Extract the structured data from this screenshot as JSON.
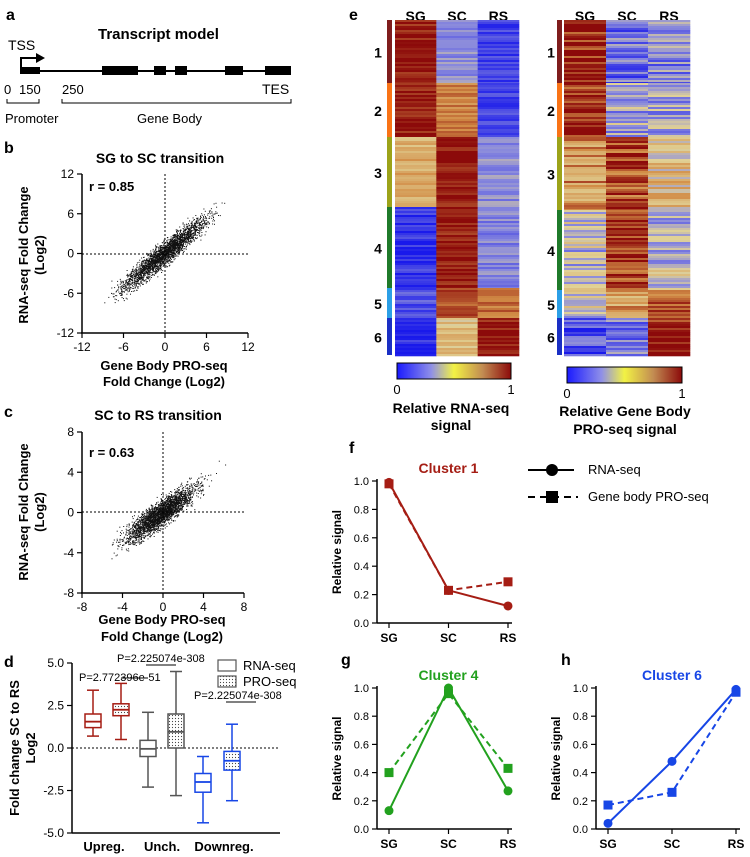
{
  "panel_letters": {
    "a": "a",
    "b": "b",
    "c": "c",
    "d": "d",
    "e": "e",
    "f": "f",
    "g": "g",
    "h": "h"
  },
  "transcript_model": {
    "title": "Transcript model",
    "tss": "TSS",
    "tes": "TES",
    "ticks": [
      "0",
      "150",
      "250"
    ],
    "promoter": "Promoter",
    "gene_body": "Gene Body"
  },
  "colors": {
    "red": "#a51d14",
    "green": "#22a11e",
    "blue": "#1746e6",
    "cluster1": "#7f1d1d",
    "cluster2": "#f97316",
    "cluster3": "#9ca319",
    "cluster4": "#1f7a2a",
    "cluster5": "#2b9fe6",
    "cluster6": "#1a2fc4"
  },
  "heatmaps": {
    "rna": {
      "columns": [
        "SG",
        "SC",
        "RS"
      ],
      "legend_label_1": "Relative RNA-seq",
      "legend_label_2": "signal",
      "scale_min": "0",
      "scale_max": "1",
      "clusters": [
        {
          "label": "1",
          "values": [
            0.96,
            0.3,
            0.1
          ]
        },
        {
          "label": "2",
          "values": [
            0.96,
            0.75,
            0.12
          ]
        },
        {
          "label": "3",
          "values": [
            0.62,
            0.96,
            0.3
          ]
        },
        {
          "label": "4",
          "values": [
            0.08,
            0.96,
            0.28
          ]
        },
        {
          "label": "5",
          "values": [
            0.15,
            0.85,
            0.78
          ]
        },
        {
          "label": "6",
          "values": [
            0.05,
            0.55,
            0.96
          ]
        }
      ]
    },
    "pro": {
      "columns": [
        "SG",
        "SC",
        "RS"
      ],
      "legend_label_1": "Relative Gene Body",
      "legend_label_2": "PRO-seq signal",
      "scale_min": "0",
      "scale_max": "1",
      "clusters": [
        {
          "label": "1",
          "values": [
            0.95,
            0.22,
            0.28
          ]
        },
        {
          "label": "2",
          "values": [
            0.92,
            0.35,
            0.35
          ]
        },
        {
          "label": "3",
          "values": [
            0.7,
            0.85,
            0.55
          ]
        },
        {
          "label": "4",
          "values": [
            0.4,
            0.9,
            0.4
          ]
        },
        {
          "label": "5",
          "values": [
            0.4,
            0.7,
            0.8
          ]
        },
        {
          "label": "6",
          "values": [
            0.15,
            0.25,
            0.95
          ]
        }
      ]
    }
  },
  "chart_data": [
    {
      "id": "b",
      "type": "scatter",
      "title": "SG to SC transition",
      "ylabel": "RNA-seq Fold Change (Log2)",
      "ylabel_1": "RNA-seq Fold Change",
      "ylabel_2": "(Log2)",
      "xlabel_1": "Gene Body PRO-seq",
      "xlabel_2": "Fold Change (Log2)",
      "xlim": [
        -12,
        12
      ],
      "ylim": [
        -12,
        12
      ],
      "xticks": [
        "-12",
        "-6",
        "0",
        "6",
        "12"
      ],
      "yticks": [
        "12",
        "6",
        "0",
        "-6",
        "-12"
      ],
      "annotation": "r = 0.85",
      "r": 0.85,
      "slope": 0.85,
      "spread_x": 3.0,
      "noise": 1.8
    },
    {
      "id": "c",
      "type": "scatter",
      "title": "SC to RS transition",
      "ylabel_1": "RNA-seq Fold Change",
      "ylabel_2": "(Log2)",
      "xlabel_1": "Gene Body PRO-seq",
      "xlabel_2": "Fold Change (Log2)",
      "xlim": [
        -8,
        8
      ],
      "ylim": [
        -8,
        8
      ],
      "xticks": [
        "-8",
        "-4",
        "0",
        "4",
        "8"
      ],
      "yticks": [
        "8",
        "4",
        "0",
        "-4",
        "-8"
      ],
      "annotation": "r = 0.63",
      "r": 0.63,
      "slope": 0.7,
      "spread_x": 1.6,
      "noise": 1.3
    },
    {
      "id": "d",
      "type": "box",
      "ylabel_1": "Fold change SC to RS",
      "ylabel_2": "Log2",
      "ylim": [
        -5,
        5
      ],
      "yticks": [
        "5.0",
        "2.5",
        "0.0",
        "-2.5",
        "-5.0"
      ],
      "categories": [
        "Upreg.",
        "Unch.",
        "Downreg."
      ],
      "legend": [
        "RNA-seq",
        "PRO-seq"
      ],
      "pvalues": [
        "P=2.772396e-51",
        "P=2.225074e-308",
        "P=2.225074e-308"
      ],
      "boxes": [
        {
          "group": "Upreg.",
          "series": "RNA-seq",
          "min": 0.7,
          "q1": 1.2,
          "median": 1.55,
          "q3": 2.0,
          "max": 3.4
        },
        {
          "group": "Upreg.",
          "series": "PRO-seq",
          "min": 0.5,
          "q1": 1.9,
          "median": 2.25,
          "q3": 2.6,
          "max": 3.8
        },
        {
          "group": "Unch.",
          "series": "RNA-seq",
          "min": -2.3,
          "q1": -0.5,
          "median": -0.05,
          "q3": 0.45,
          "max": 2.1
        },
        {
          "group": "Unch.",
          "series": "PRO-seq",
          "min": -2.8,
          "q1": 0.0,
          "median": 0.95,
          "q3": 2.0,
          "max": 4.5
        },
        {
          "group": "Downreg.",
          "series": "RNA-seq",
          "min": -4.4,
          "q1": -2.6,
          "median": -2.0,
          "q3": -1.5,
          "max": -0.5
        },
        {
          "group": "Downreg.",
          "series": "PRO-seq",
          "min": -3.1,
          "q1": -1.3,
          "median": -0.75,
          "q3": -0.2,
          "max": 1.4
        }
      ]
    },
    {
      "id": "f",
      "type": "line",
      "title": "Cluster 1",
      "ylabel": "Relative signal",
      "categories": [
        "SG",
        "SC",
        "RS"
      ],
      "ylim": [
        0,
        1
      ],
      "yticks": [
        "0.0",
        "0.2",
        "0.4",
        "0.6",
        "0.8",
        "1.0"
      ],
      "series": [
        {
          "name": "RNA-seq",
          "values": [
            0.99,
            0.23,
            0.12
          ]
        },
        {
          "name": "Gene body PRO-seq",
          "values": [
            0.98,
            0.23,
            0.29
          ]
        }
      ]
    },
    {
      "id": "g",
      "type": "line",
      "title": "Cluster 4",
      "ylabel": "Relative signal",
      "categories": [
        "SG",
        "SC",
        "RS"
      ],
      "ylim": [
        0,
        1
      ],
      "yticks": [
        "0.0",
        "0.2",
        "0.4",
        "0.6",
        "0.8",
        "1.0"
      ],
      "series": [
        {
          "name": "RNA-seq",
          "values": [
            0.13,
            1.0,
            0.27
          ]
        },
        {
          "name": "Gene body PRO-seq",
          "values": [
            0.4,
            0.96,
            0.43
          ]
        }
      ]
    },
    {
      "id": "h",
      "type": "line",
      "title": "Cluster 6",
      "ylabel": "Relative signal",
      "categories": [
        "SG",
        "SC",
        "RS"
      ],
      "ylim": [
        0,
        1
      ],
      "yticks": [
        "0.0",
        "0.2",
        "0.4",
        "0.6",
        "0.8",
        "1.0"
      ],
      "series": [
        {
          "name": "RNA-seq",
          "values": [
            0.04,
            0.48,
            0.99
          ]
        },
        {
          "name": "Gene body PRO-seq",
          "values": [
            0.17,
            0.26,
            0.97
          ]
        }
      ]
    }
  ],
  "line_legend": [
    "RNA-seq",
    "Gene body PRO-seq"
  ]
}
